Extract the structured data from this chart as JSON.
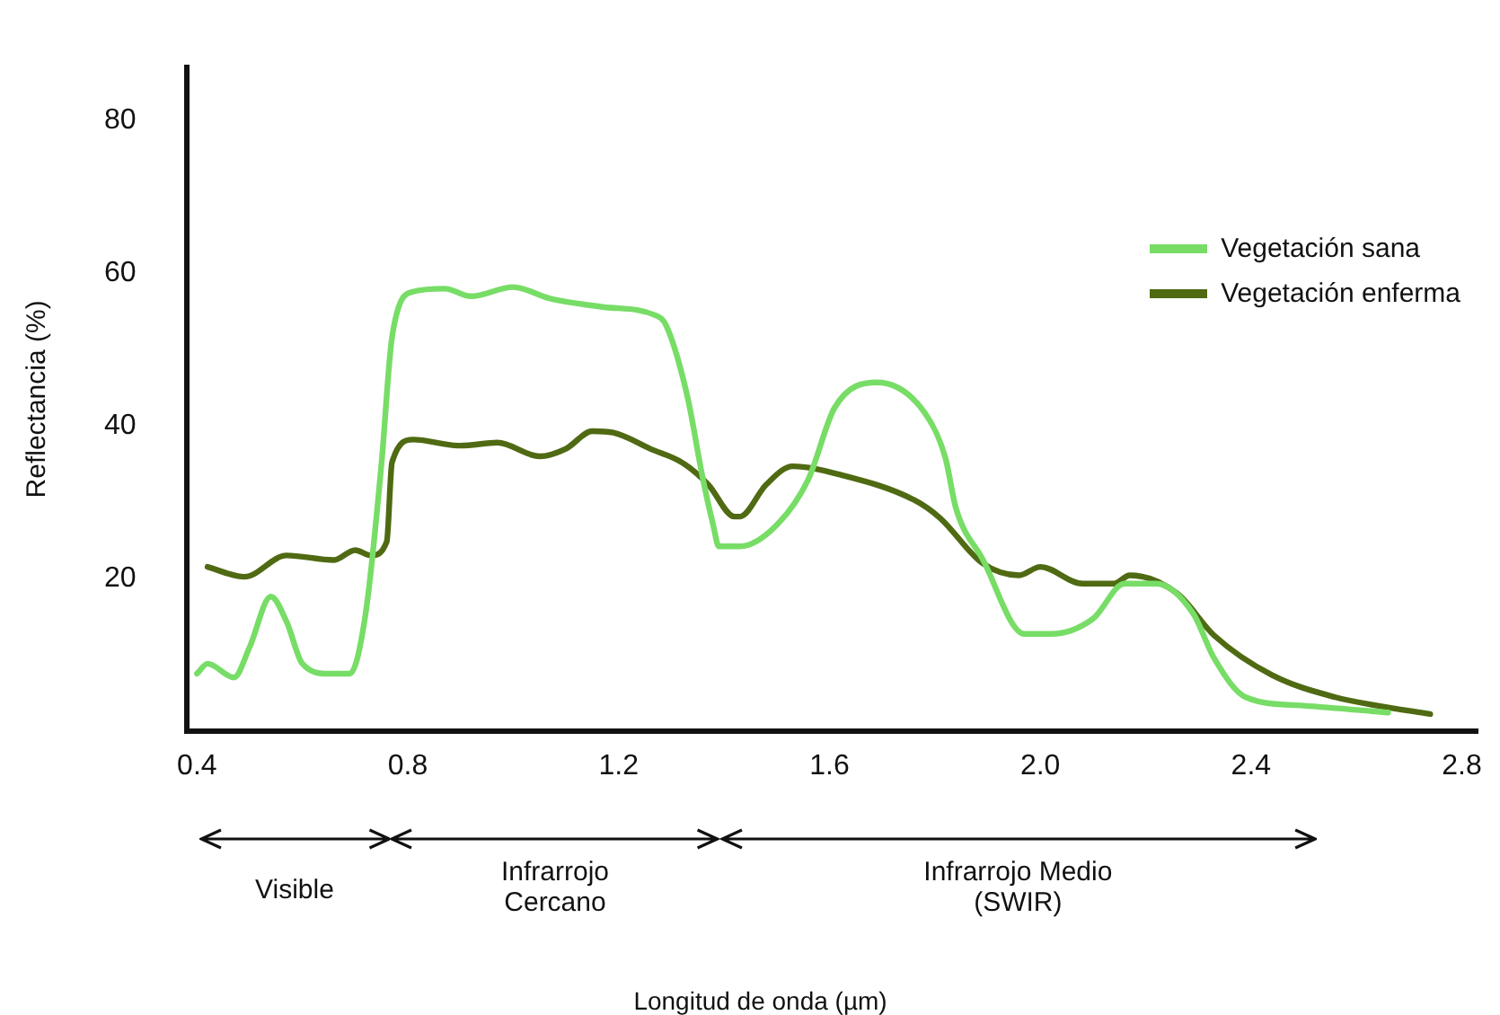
{
  "chart_data": {
    "type": "line",
    "ylabel": "Reflectancia (%)",
    "xlim": [
      0.38,
      2.83
    ],
    "xticks": [
      0.4,
      0.8,
      1.2,
      1.6,
      {
        "value": 2,
        "label": "2.0"
      },
      2.4,
      2.8
    ],
    "ylim": [
      0,
      87
    ],
    "yticks": [
      20,
      40,
      60,
      80
    ],
    "grid": false,
    "legend": "top right",
    "marker": "none",
    "series": [
      {
        "name": "Vegetación sana",
        "color": "#77dd66",
        "x": [
          0.4,
          0.42,
          0.47,
          0.5,
          0.54,
          0.57,
          0.6,
          0.65,
          0.69,
          0.72,
          0.75,
          0.77,
          0.81,
          0.87,
          0.92,
          1.0,
          1.07,
          1.17,
          1.27,
          1.29,
          1.33,
          1.36,
          1.38,
          1.39,
          1.43,
          1.5,
          1.56,
          1.61,
          1.69,
          1.78,
          1.82,
          1.84,
          1.89,
          1.97,
          2.02,
          2.1,
          2.16,
          2.22,
          2.29,
          2.33,
          2.39,
          2.5,
          2.66
        ],
        "values": [
          7.5,
          8.8,
          7,
          11,
          17.6,
          14.3,
          8.8,
          7.5,
          7.5,
          15.4,
          35,
          51.6,
          57.6,
          58,
          57,
          58.2,
          56.7,
          55.6,
          54.5,
          53.2,
          44,
          33,
          26.8,
          24.2,
          24.2,
          27,
          33,
          42.4,
          45.7,
          41.8,
          35.8,
          29.2,
          22.6,
          12.7,
          12.7,
          14.7,
          19.3,
          19.3,
          15.4,
          9.5,
          4.4,
          3.3,
          2.4
        ]
      },
      {
        "name": "Vegetación enferma",
        "color": "#4f6a12",
        "x": [
          0.42,
          0.49,
          0.57,
          0.66,
          0.7,
          0.73,
          0.76,
          0.77,
          0.81,
          0.9,
          0.97,
          1.05,
          1.1,
          1.15,
          1.19,
          1.26,
          1.32,
          1.37,
          1.42,
          1.43,
          1.48,
          1.53,
          1.62,
          1.76,
          1.81,
          1.89,
          1.96,
          2.0,
          2.08,
          2.14,
          2.17,
          2.26,
          2.33,
          2.44,
          2.56,
          2.64,
          2.74
        ],
        "values": [
          21.5,
          20.2,
          23,
          22.4,
          23.7,
          23,
          24.8,
          35.2,
          38.2,
          37.4,
          37.8,
          36,
          37,
          39.3,
          39.1,
          37,
          35.2,
          32.3,
          28.1,
          28.1,
          32.3,
          34.7,
          33.6,
          30.3,
          27.9,
          22,
          20.4,
          21.5,
          19.3,
          19.3,
          20.4,
          18,
          12.5,
          7.3,
          4.4,
          3.3,
          2.2
        ]
      }
    ],
    "annotations": [
      "Visible",
      "Infrarrojo Cercano",
      "Infrarrojo Medio (SWIR)",
      "Longitud de onda (µm)"
    ]
  }
}
